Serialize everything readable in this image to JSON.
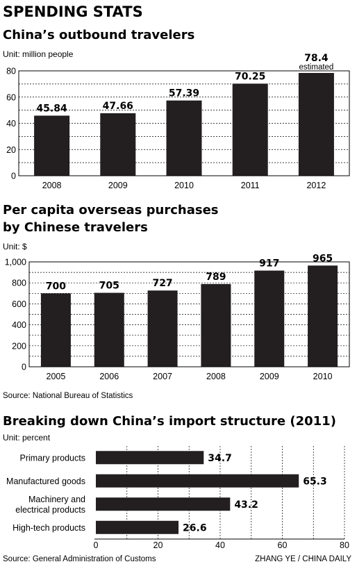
{
  "header": {
    "title": "SPENDING STATS"
  },
  "chart_data": [
    {
      "type": "bar",
      "title": "China’s outbound travelers",
      "unit": "Unit: million people",
      "categories": [
        "2008",
        "2009",
        "2010",
        "2011",
        "2012"
      ],
      "values": [
        45.84,
        47.66,
        57.39,
        70.25,
        78.4
      ],
      "value_labels": [
        "45.84",
        "47.66",
        "57.39",
        "70.25",
        "78.4"
      ],
      "annotations": [
        {
          "category": "2012",
          "text": "estimated"
        }
      ],
      "ylim": [
        0,
        80
      ],
      "yticks": [
        "0",
        "20",
        "40",
        "60",
        "80"
      ],
      "grid": "dashed horizontal",
      "bar_color": "#231f20"
    },
    {
      "type": "bar",
      "title": "Per capita overseas purchases by Chinese travelers",
      "title_lines": [
        "Per capita overseas purchases",
        "by Chinese travelers"
      ],
      "unit": "Unit: $",
      "categories": [
        "2005",
        "2006",
        "2007",
        "2008",
        "2009",
        "2010"
      ],
      "values": [
        700,
        705,
        727,
        789,
        917,
        965
      ],
      "value_labels": [
        "700",
        "705",
        "727",
        "789",
        "917",
        "965"
      ],
      "ylim": [
        0,
        1000
      ],
      "yticks": [
        "0",
        "200",
        "400",
        "600",
        "800",
        "1,000"
      ],
      "grid": "dashed horizontal",
      "bar_color": "#231f20",
      "source": "Source: National Bureau of Statistics"
    },
    {
      "type": "bar",
      "orientation": "horizontal",
      "title": "Breaking down China’s import structure (2011)",
      "unit": "Unit: percent",
      "categories": [
        "Primary products",
        "Manufactured goods",
        "Machinery and electrical products",
        "High-tech products"
      ],
      "category_lines": [
        [
          "Primary products"
        ],
        [
          "Manufactured goods"
        ],
        [
          "Machinery and",
          "electrical products"
        ],
        [
          "High-tech products"
        ]
      ],
      "values": [
        34.7,
        65.3,
        43.2,
        26.6
      ],
      "value_labels": [
        "34.7",
        "65.3",
        "43.2",
        "26.6"
      ],
      "xlim": [
        0,
        80
      ],
      "xticks": [
        "0",
        "20",
        "40",
        "60",
        "80"
      ],
      "grid": "dashed vertical",
      "bar_color": "#231f20",
      "source": "Source: General Administration of Customs"
    }
  ],
  "footer": {
    "credit": "ZHANG YE / CHINA DAILY"
  }
}
